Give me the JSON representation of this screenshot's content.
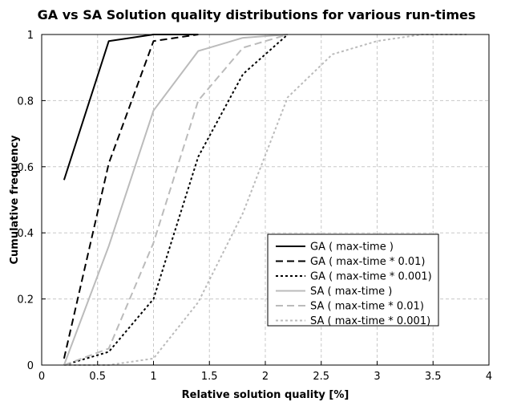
{
  "chart_data": {
    "type": "line",
    "title": "GA vs SA Solution quality distributions for various run-times",
    "xlabel": "Relative solution quality [%]",
    "ylabel": "Cumulative frequency",
    "xlim": [
      0,
      4
    ],
    "ylim": [
      0,
      1
    ],
    "xticks": [
      0,
      0.5,
      1,
      1.5,
      2,
      2.5,
      3,
      3.5,
      4
    ],
    "yticks": [
      0,
      0.2,
      0.4,
      0.6,
      0.8,
      1
    ],
    "grid": true,
    "legend_position": "bottom-right",
    "series": [
      {
        "name": "GA ( max-time )",
        "color": "#000000",
        "dash": "solid",
        "x": [
          0.2,
          0.6,
          1.0,
          1.4
        ],
        "y": [
          0.56,
          0.98,
          1.0,
          1.0
        ]
      },
      {
        "name": "GA ( max-time * 0.01)",
        "color": "#000000",
        "dash": "dashed",
        "x": [
          0.2,
          0.6,
          1.0,
          1.4
        ],
        "y": [
          0.02,
          0.61,
          0.98,
          1.0
        ]
      },
      {
        "name": "GA ( max-time * 0.001)",
        "color": "#000000",
        "dash": "dotted",
        "x": [
          0.2,
          0.6,
          1.0,
          1.4,
          1.8,
          2.2
        ],
        "y": [
          0.0,
          0.04,
          0.2,
          0.63,
          0.88,
          1.0
        ]
      },
      {
        "name": "SA ( max-time )",
        "color": "#bbbbbb",
        "dash": "solid",
        "x": [
          0.2,
          0.6,
          1.0,
          1.4,
          1.8,
          2.2
        ],
        "y": [
          0.0,
          0.36,
          0.77,
          0.95,
          0.99,
          1.0
        ]
      },
      {
        "name": "SA ( max-time * 0.01)",
        "color": "#bbbbbb",
        "dash": "dashed",
        "x": [
          0.2,
          0.6,
          1.0,
          1.4,
          1.8,
          2.2
        ],
        "y": [
          0.0,
          0.05,
          0.37,
          0.8,
          0.96,
          1.0
        ]
      },
      {
        "name": "SA ( max-time * 0.001)",
        "color": "#bbbbbb",
        "dash": "dotted",
        "x": [
          0.2,
          0.6,
          1.0,
          1.4,
          1.8,
          2.2,
          2.6,
          3.0,
          3.4,
          3.8
        ],
        "y": [
          0.0,
          0.0,
          0.02,
          0.19,
          0.46,
          0.81,
          0.94,
          0.98,
          1.0,
          1.0
        ]
      }
    ]
  }
}
